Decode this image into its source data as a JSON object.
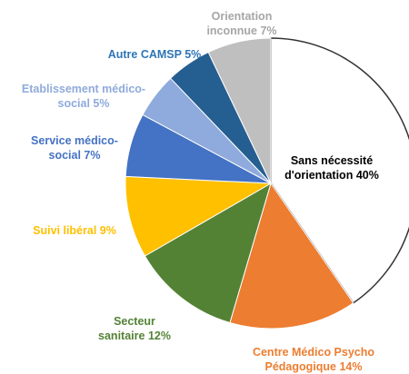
{
  "chart_data": {
    "type": "pie",
    "categories": [
      "Sans nécessité d'orientation",
      "Centre Médico Psycho Pédagogique",
      "Secteur sanitaire",
      "Suivi libéral",
      "Service médico-social",
      "Etablissement médico-social",
      "Autre CAMSP",
      "Orientation inconnue"
    ],
    "values": [
      40,
      14,
      12,
      9,
      7,
      5,
      5,
      7
    ],
    "value_labels": [
      "40%",
      "14%",
      "12%",
      "9%",
      "7%",
      "5%",
      "5%",
      "7%"
    ],
    "colors": [
      "#ffffff",
      "#ed7d31",
      "#548235",
      "#ffc000",
      "#4472c4",
      "#8faadc",
      "#255e91",
      "#bfbfbf"
    ]
  }
}
